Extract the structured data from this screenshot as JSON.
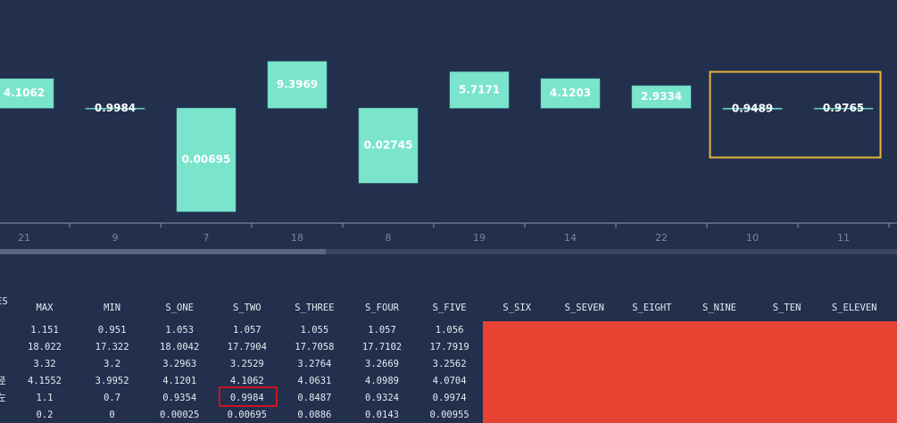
{
  "chart_data": {
    "type": "bar",
    "log_scale": true,
    "color": "#7ae4cd",
    "categories": [
      "21",
      "9",
      "7",
      "18",
      "8",
      "19",
      "14",
      "22",
      "10",
      "11"
    ],
    "values": [
      4.1062,
      0.9984,
      0.00695,
      9.3969,
      0.02745,
      5.7171,
      4.1203,
      2.9334,
      0.9489,
      0.9765
    ],
    "ylim": [
      0.004,
      180
    ]
  },
  "table": {
    "headers": [
      "ES",
      "MAX",
      "MIN",
      "S_ONE",
      "S_TWO",
      "S_THREE",
      "S_FOUR",
      "S_FIVE",
      "S_SIX",
      "S_SEVEN",
      "S_EIGHT",
      "S_NINE",
      "S_TEN",
      "S_ELEVEN"
    ],
    "rows": [
      {
        "cells": [
          "1.151",
          "0.951",
          "1.053",
          "1.057",
          "1.055",
          "1.057",
          "1.056"
        ]
      },
      {
        "cells": [
          "18.022",
          "17.322",
          "18.0042",
          "17.7904",
          "17.7058",
          "17.7102",
          "17.7919"
        ]
      },
      {
        "cells": [
          "3.32",
          "3.2",
          "3.2963",
          "3.2529",
          "3.2764",
          "3.2669",
          "3.2562"
        ]
      },
      {
        "label": "径",
        "cells": [
          "4.1552",
          "3.9952",
          "4.1201",
          "4.1062",
          "4.0631",
          "4.0989",
          "4.0704"
        ]
      },
      {
        "label": "左",
        "cells": [
          "1.1",
          "0.7",
          "0.9354",
          "0.9984",
          "0.8487",
          "0.9324",
          "0.9974"
        ]
      },
      {
        "cells": [
          "0.2",
          "0",
          "0.00025",
          "0.00695",
          "0.0886",
          "0.0143",
          "0.00955"
        ]
      }
    ]
  }
}
